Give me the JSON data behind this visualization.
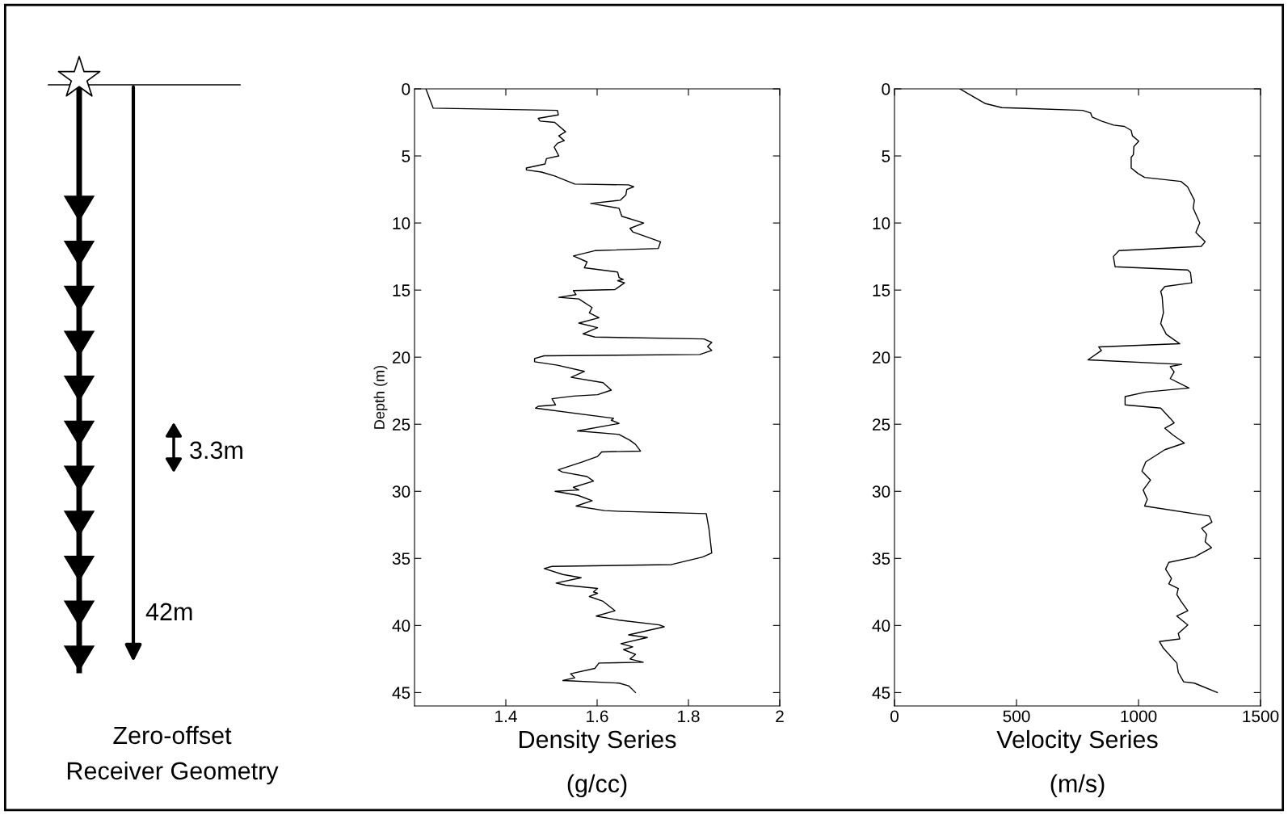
{
  "chart_data": [
    {
      "type": "other",
      "title": "Zero-offset\nReceiver Geometry",
      "annotations": [
        "3.3m",
        "42m"
      ]
    },
    {
      "type": "line",
      "xlabel": "Density Series\n\n(g/cc)",
      "ylabel": "Depth (m)",
      "xlim": [
        1.2,
        2
      ],
      "xticks": [
        1.4,
        1.6,
        1.8,
        2
      ],
      "ylim": [
        46,
        0
      ],
      "yticks": [
        0,
        5,
        10,
        15,
        20,
        25,
        30,
        35,
        40,
        45
      ],
      "grid": false,
      "marker": "none",
      "line_style": "solid",
      "series": [
        {
          "color": "#000000",
          "x": [
            1.225,
            1.241,
            1.513,
            1.515,
            1.471,
            1.475,
            1.507,
            1.531,
            1.516,
            1.528,
            1.513,
            1.506,
            1.516,
            1.489,
            1.486,
            1.445,
            1.445,
            1.478,
            1.507,
            1.551,
            1.669,
            1.68,
            1.665,
            1.663,
            1.651,
            1.586,
            1.648,
            1.654,
            1.702,
            1.672,
            1.678,
            1.739,
            1.734,
            1.595,
            1.548,
            1.578,
            1.572,
            1.645,
            1.648,
            1.657,
            1.645,
            1.66,
            1.639,
            1.548,
            1.554,
            1.516,
            1.56,
            1.589,
            1.583,
            1.604,
            1.56,
            1.601,
            1.569,
            1.595,
            1.834,
            1.851,
            1.842,
            1.851,
            1.825,
            1.484,
            1.463,
            1.463,
            1.513,
            1.572,
            1.543,
            1.613,
            1.631,
            1.601,
            1.548,
            1.501,
            1.509,
            1.471,
            1.465,
            1.636,
            1.631,
            1.648,
            1.557,
            1.648,
            1.672,
            1.684,
            1.695,
            1.61,
            1.601,
            1.565,
            1.515,
            1.524,
            1.578,
            1.592,
            1.548,
            1.56,
            1.508,
            1.558,
            1.589,
            1.554,
            1.616,
            1.654,
            1.839,
            1.845,
            1.851,
            1.831,
            1.763,
            1.501,
            1.484,
            1.525,
            1.565,
            1.51,
            1.531,
            1.601,
            1.592,
            1.601,
            1.583,
            1.613,
            1.639,
            1.598,
            1.648,
            1.736,
            1.747,
            1.669,
            1.71,
            1.652,
            1.678,
            1.658,
            1.684,
            1.672,
            1.701,
            1.604,
            1.595,
            1.542,
            1.551,
            1.525,
            1.648,
            1.669,
            1.684
          ],
          "values": [
            0,
            1.44,
            1.6,
            1.94,
            2.2,
            2.4,
            2.5,
            3.2,
            3.5,
            3.86,
            4.06,
            4.34,
            5.0,
            5.2,
            5.6,
            5.9,
            6.04,
            6.2,
            6.5,
            7.1,
            7.16,
            7.3,
            7.5,
            7.9,
            8.3,
            8.54,
            8.9,
            9.5,
            10.0,
            10.4,
            10.66,
            11.4,
            11.9,
            12.06,
            12.46,
            12.9,
            13.34,
            13.66,
            14.06,
            14.2,
            14.3,
            14.46,
            14.96,
            15.04,
            15.34,
            15.54,
            15.66,
            16.3,
            16.7,
            17.06,
            17.46,
            17.8,
            18.26,
            18.5,
            18.64,
            18.9,
            19.2,
            19.5,
            19.8,
            19.9,
            20.1,
            20.34,
            20.6,
            21.06,
            21.5,
            21.9,
            22.46,
            22.8,
            22.9,
            23.1,
            23.56,
            23.66,
            23.8,
            24.56,
            24.7,
            24.94,
            25.5,
            25.76,
            26.2,
            26.5,
            27.0,
            27.06,
            27.4,
            27.84,
            28.4,
            28.56,
            28.9,
            29.24,
            29.7,
            29.9,
            30.0,
            30.3,
            30.7,
            31.1,
            31.44,
            31.5,
            31.66,
            32.8,
            34.6,
            34.9,
            35.46,
            35.6,
            35.76,
            36.2,
            36.44,
            36.84,
            37.0,
            37.24,
            37.5,
            37.6,
            37.84,
            38.2,
            38.9,
            39.3,
            39.6,
            39.96,
            40.1,
            40.7,
            40.9,
            41.36,
            41.6,
            41.8,
            42.16,
            42.5,
            42.74,
            42.8,
            43.2,
            43.6,
            43.9,
            44.1,
            44.3,
            44.5,
            45.0
          ]
        }
      ]
    },
    {
      "type": "line",
      "xlabel": "Velocity Series\n\n(m/s)",
      "xlim": [
        0,
        1500
      ],
      "xticks": [
        0,
        500,
        1000,
        1500
      ],
      "ylim": [
        46,
        0
      ],
      "yticks": [
        0,
        5,
        10,
        15,
        20,
        25,
        30,
        35,
        40,
        45
      ],
      "grid": false,
      "marker": "none",
      "line_style": "solid",
      "series": [
        {
          "color": "#000000",
          "x": [
            268,
            324,
            373,
            440,
            771,
            804,
            810,
            848,
            898,
            942,
            970,
            975,
            1001,
            981,
            979,
            970,
            970,
            997,
            1025,
            1174,
            1201,
            1229,
            1224,
            1251,
            1235,
            1273,
            1257,
            920,
            897,
            904,
            1202,
            1213,
            1218,
            1108,
            1091,
            1097,
            1102,
            1091,
            1114,
            1169,
            837,
            848,
            793,
            1177,
            1130,
            1146,
            1130,
            1207,
            1030,
            945,
            945,
            1091,
            1130,
            1146,
            1108,
            1141,
            1188,
            1108,
            1030,
            1014,
            1049,
            1019,
            1036,
            1025,
            1290,
            1301,
            1259,
            1279,
            1273,
            1299,
            1229,
            1124,
            1111,
            1135,
            1124,
            1163,
            1157,
            1174,
            1202,
            1157,
            1202,
            1163,
            1169,
            1086,
            1102,
            1157,
            1163,
            1185,
            1229,
            1323
          ],
          "values": [
            0,
            0.6,
            1.1,
            1.4,
            1.6,
            1.8,
            2.1,
            2.4,
            2.7,
            2.8,
            3.1,
            3.5,
            3.9,
            4.3,
            4.9,
            5.1,
            5.9,
            6.3,
            6.6,
            6.9,
            7.3,
            8.3,
            8.9,
            10.0,
            10.7,
            11.4,
            11.74,
            12.06,
            12.5,
            13.26,
            13.5,
            13.7,
            14.46,
            14.74,
            15.1,
            15.5,
            16.7,
            17.5,
            18.3,
            19.0,
            19.24,
            19.5,
            20.2,
            20.54,
            20.7,
            21.1,
            21.6,
            22.3,
            22.6,
            22.94,
            23.56,
            23.8,
            24.56,
            24.9,
            25.3,
            25.8,
            26.4,
            26.9,
            27.8,
            28.5,
            29.16,
            29.9,
            30.6,
            31.1,
            31.84,
            32.3,
            32.76,
            33.2,
            33.76,
            34.2,
            34.9,
            35.3,
            35.8,
            36.5,
            36.9,
            37.24,
            37.7,
            38.2,
            38.9,
            39.3,
            39.96,
            40.6,
            41.0,
            41.2,
            41.7,
            42.8,
            43.5,
            44.2,
            44.3,
            45.0
          ]
        }
      ]
    }
  ]
}
